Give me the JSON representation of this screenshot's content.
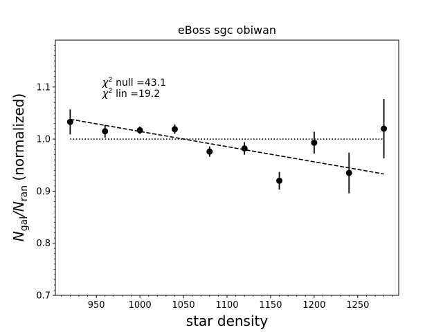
{
  "chart_data": {
    "type": "scatter",
    "title": "eBoss sgc obiwan",
    "xlabel": "star density",
    "ylabel_main": "N",
    "ylabel_sub1": "gal",
    "ylabel_slash": "/",
    "ylabel_sub2": "ran",
    "ylabel_rest": " (normalized)",
    "xlim": [
      903,
      1297
    ],
    "ylim": [
      0.7,
      1.19
    ],
    "x_ticks": [
      950,
      1000,
      1050,
      1100,
      1150,
      1200,
      1250
    ],
    "y_ticks": [
      0.7,
      0.8,
      0.9,
      1.0,
      1.1
    ],
    "x_tick_labels": [
      "950",
      "1000",
      "1050",
      "1100",
      "1150",
      "1200",
      "1250"
    ],
    "y_tick_labels": [
      "0.7",
      "0.8",
      "0.9",
      "1.0",
      "1.1"
    ],
    "grid": false,
    "annotations": [
      {
        "chi": "χ",
        "sup": "2",
        "text": " null =43.1"
      },
      {
        "chi": "χ",
        "sup": "2",
        "text": " lin =19.2"
      }
    ],
    "series": [
      {
        "style": "errorbar-points",
        "color": "#000000",
        "x": [
          920,
          960,
          1000,
          1040,
          1080,
          1120,
          1160,
          1200,
          1240,
          1280
        ],
        "y": [
          1.033,
          1.015,
          1.017,
          1.019,
          0.976,
          0.982,
          0.92,
          0.993,
          0.935,
          1.02
        ],
        "yerr": [
          0.024,
          0.012,
          0.007,
          0.009,
          0.01,
          0.012,
          0.017,
          0.021,
          0.039,
          0.057
        ]
      },
      {
        "style": "dashed-line",
        "color": "#000000",
        "x": [
          920,
          1280
        ],
        "y": [
          1.038,
          0.933
        ]
      },
      {
        "style": "dotted-line",
        "color": "#000000",
        "x": [
          920,
          1280
        ],
        "y": [
          1.0,
          1.0
        ]
      }
    ]
  }
}
